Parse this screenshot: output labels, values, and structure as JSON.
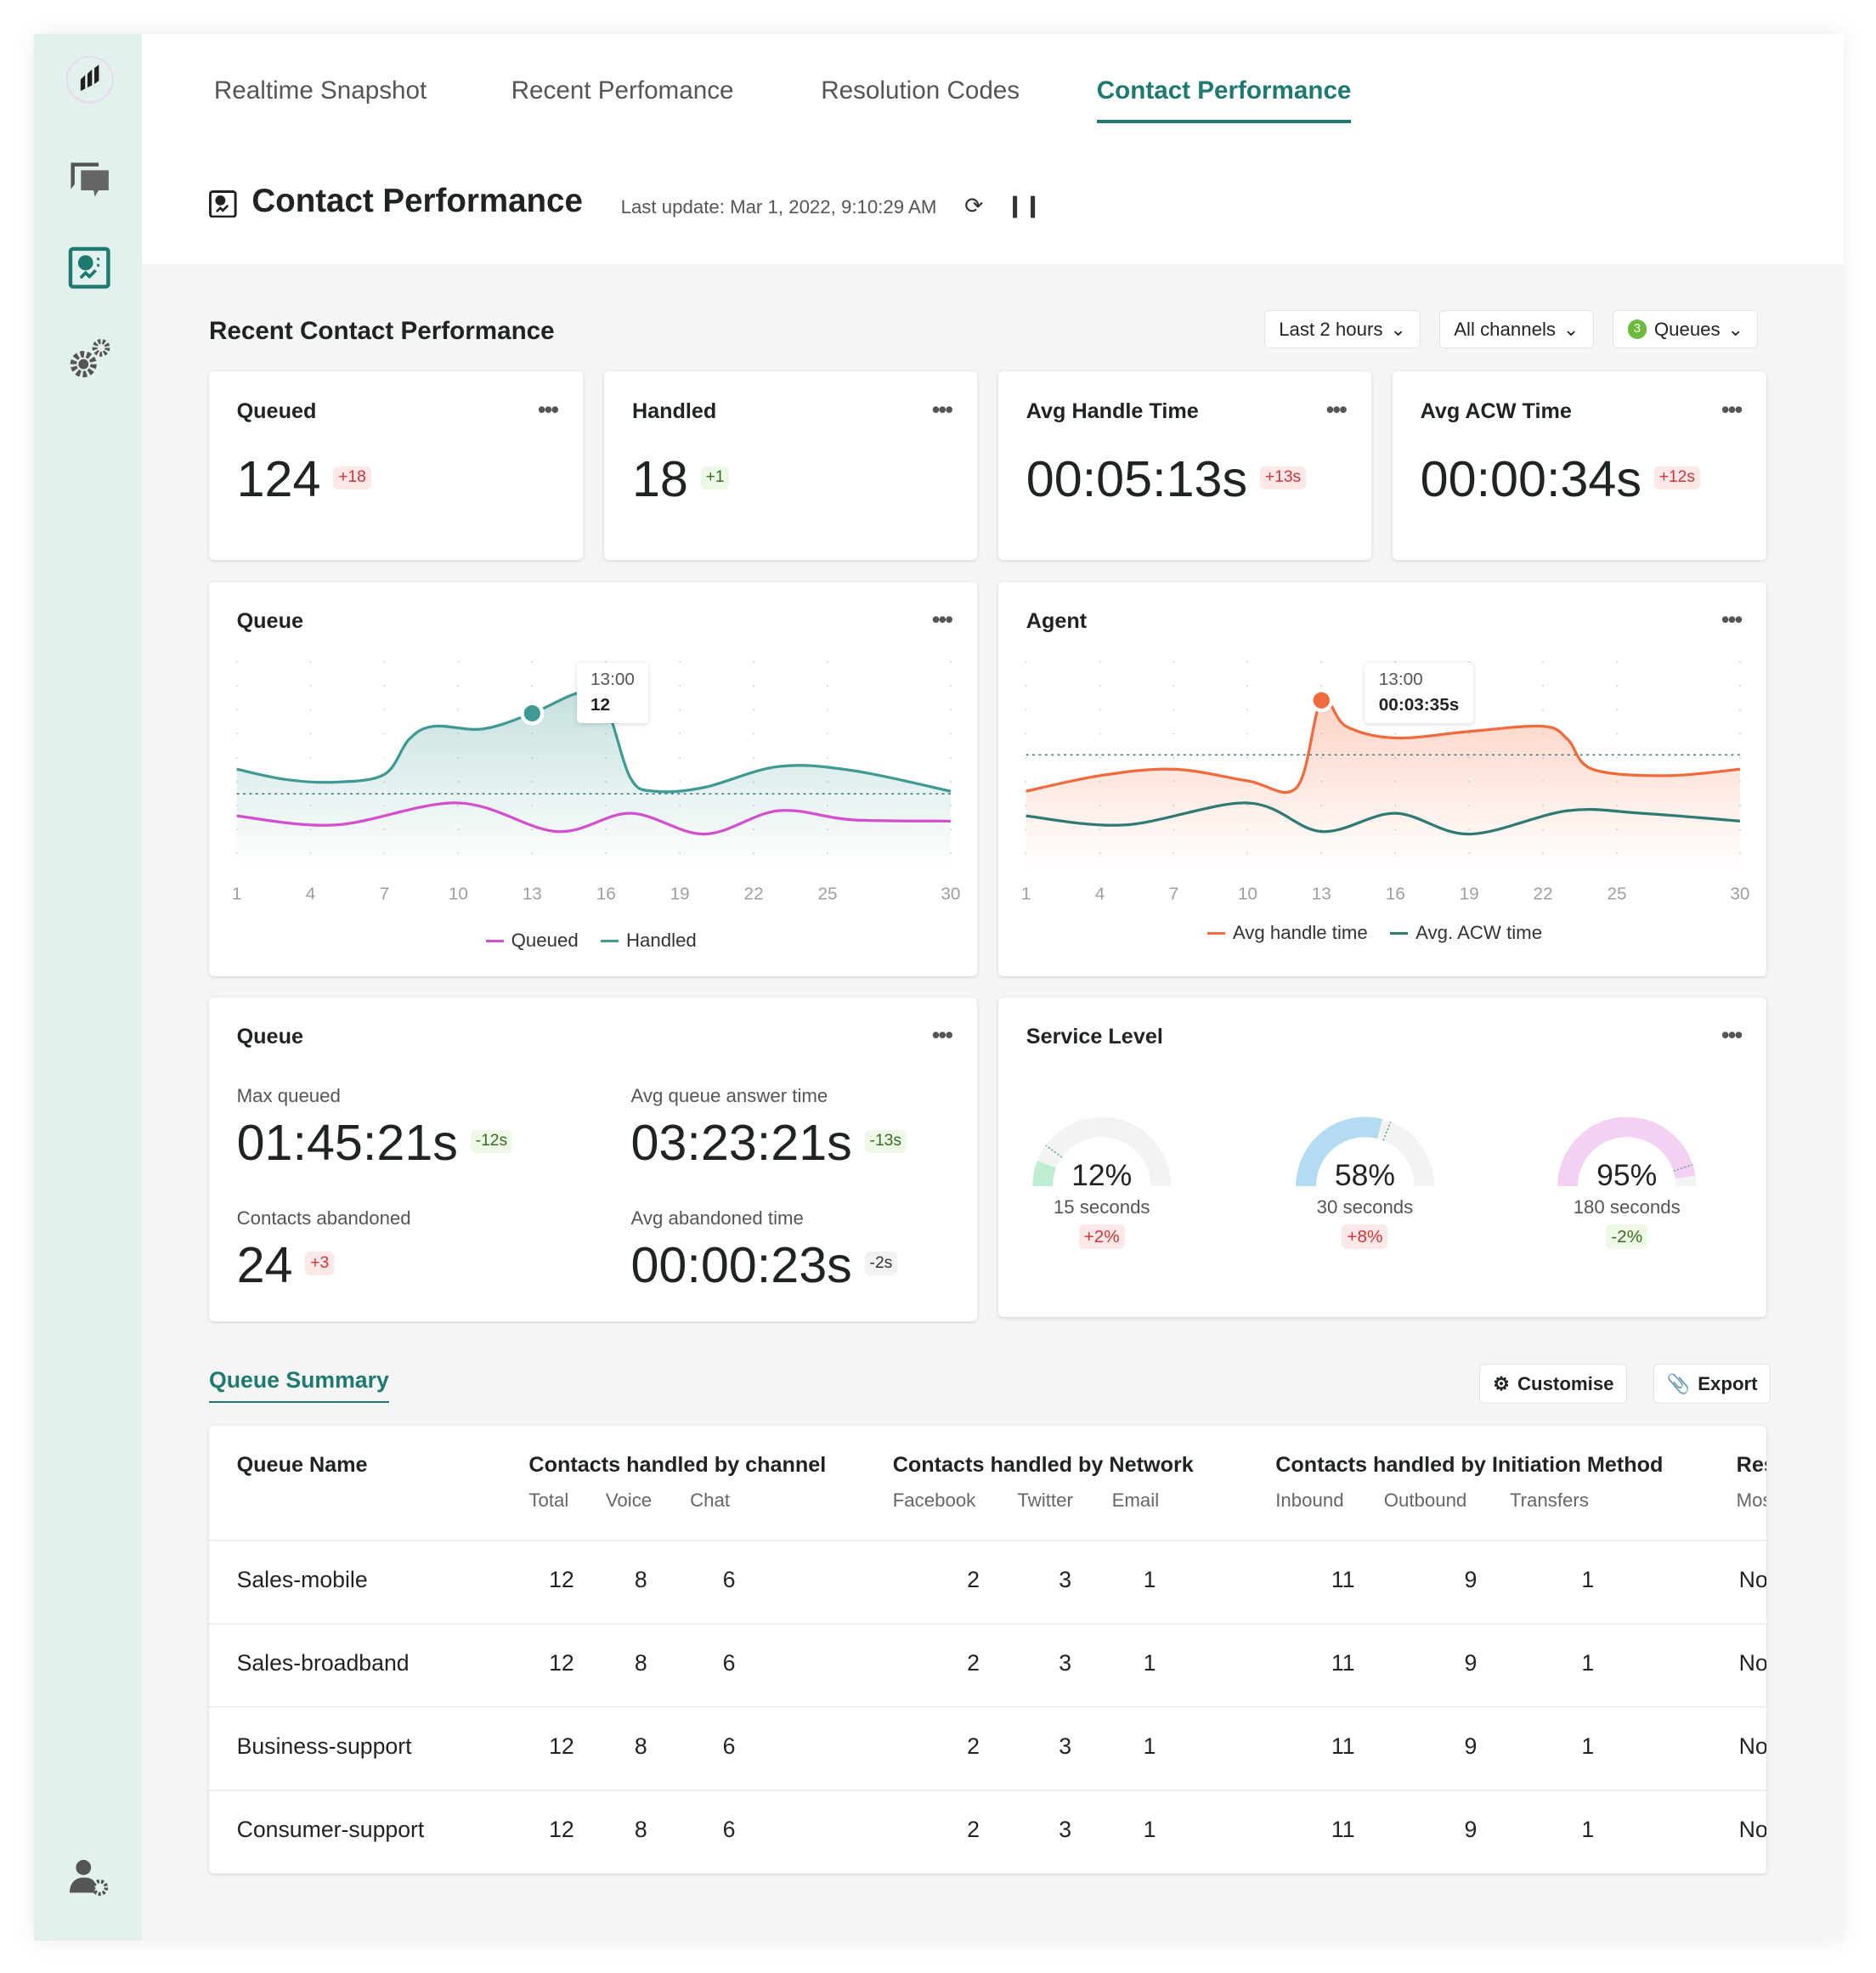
{
  "tabs": [
    {
      "label": "Realtime Snapshot",
      "active": false
    },
    {
      "label": "Recent Perfomance",
      "active": false
    },
    {
      "label": "Resolution Codes",
      "active": false
    },
    {
      "label": "Contact Performance",
      "active": true
    }
  ],
  "header": {
    "title": "Contact Performance",
    "last_update": "Last update: Mar 1, 2022, 9:10:29 AM"
  },
  "section": {
    "title": "Recent Contact Performance"
  },
  "filters": {
    "time": "Last 2 hours",
    "channels": "All channels",
    "queues_count": "3",
    "queues": "Queues"
  },
  "kpis": [
    {
      "title": "Queued",
      "value": "124",
      "delta": "+18",
      "status": "bad"
    },
    {
      "title": "Handled",
      "value": "18",
      "delta": "+1",
      "status": "good"
    },
    {
      "title": "Avg Handle Time",
      "value": "00:05:13s",
      "delta": "+13s",
      "status": "bad"
    },
    {
      "title": "Avg ACW Time",
      "value": "00:00:34s",
      "delta": "+12s",
      "status": "bad"
    }
  ],
  "queue_chart": {
    "title": "Queue",
    "tooltip_time": "13:00",
    "tooltip_value": "12",
    "legend": [
      "Queued",
      "Handled"
    ]
  },
  "agent_chart": {
    "title": "Agent",
    "tooltip_time": "13:00",
    "tooltip_value": "00:03:35s",
    "legend": [
      "Avg handle time",
      "Avg. ACW time"
    ]
  },
  "chart_data": [
    {
      "type": "area",
      "title": "Queue",
      "x_ticks": [
        "1",
        "4",
        "7",
        "10",
        "13",
        "16",
        "19",
        "22",
        "25",
        "30"
      ],
      "ylim": [
        0,
        16
      ],
      "series": [
        {
          "name": "Handled",
          "color": "#3f9a93",
          "x": [
            1,
            3,
            5,
            7,
            8,
            9,
            11,
            13,
            15,
            16,
            17,
            18,
            20,
            23,
            26,
            30
          ],
          "values": [
            7.7,
            6.9,
            6.7,
            7.3,
            10,
            11,
            10.8,
            12,
            13.6,
            12.5,
            7,
            6,
            6.3,
            7.9,
            7.6,
            6
          ]
        },
        {
          "name": "Queued",
          "color": "#d24fd0",
          "x": [
            1,
            5,
            10,
            14,
            17,
            20,
            23,
            26,
            30
          ],
          "values": [
            4.1,
            3.4,
            5.1,
            2.9,
            4.3,
            2.7,
            4.5,
            3.8,
            3.7
          ]
        }
      ],
      "average": 5.8
    },
    {
      "type": "area",
      "title": "Agent",
      "x_ticks": [
        "1",
        "4",
        "7",
        "10",
        "13",
        "16",
        "19",
        "22",
        "25",
        "30"
      ],
      "ylim": [
        0,
        16
      ],
      "series": [
        {
          "name": "Avg handle time",
          "color": "#f26a3b",
          "x": [
            1,
            4,
            7,
            10,
            12,
            13,
            14,
            16,
            19,
            22,
            23,
            24,
            27,
            30
          ],
          "values": [
            6,
            7.2,
            7.7,
            6.8,
            6.3,
            13,
            11,
            10.1,
            10.6,
            11,
            10,
            7.7,
            7.2,
            7.7
          ]
        },
        {
          "name": "Avg. ACW time",
          "color": "#2f7a72",
          "x": [
            1,
            5,
            10,
            13,
            16,
            19,
            23,
            26,
            30
          ],
          "values": [
            4.1,
            3.4,
            5.1,
            2.9,
            4.3,
            2.7,
            4.5,
            4.3,
            3.7
          ]
        }
      ],
      "average": 8.8
    }
  ],
  "queue_stats": {
    "title": "Queue",
    "items": [
      {
        "label": "Max queued",
        "value": "01:45:21s",
        "delta": "-12s",
        "status": "good"
      },
      {
        "label": "Avg queue answer time",
        "value": "03:23:21s",
        "delta": "-13s",
        "status": "good"
      },
      {
        "label": "Contacts abandoned",
        "value": "24",
        "delta": "+3",
        "status": "bad"
      },
      {
        "label": "Avg abandoned time",
        "value": "00:00:23s",
        "delta": "-2s",
        "status": "neutral"
      }
    ]
  },
  "service_level": {
    "title": "Service Level",
    "gauges": [
      {
        "percent": 12,
        "label": "12%",
        "threshold": "15 seconds",
        "delta": "+2%",
        "status": "bad",
        "color": "#bdeed2",
        "marker": 20
      },
      {
        "percent": 58,
        "label": "58%",
        "threshold": "30 seconds",
        "delta": "+8%",
        "status": "bad",
        "color": "#b3dcf3",
        "marker": 62
      },
      {
        "percent": 95,
        "label": "95%",
        "threshold": "180 seconds",
        "delta": "-2%",
        "status": "good",
        "color": "#f4d0f2",
        "marker": 90
      }
    ]
  },
  "queue_summary": {
    "title": "Queue Summary",
    "customise": "Customise",
    "export": "Export"
  },
  "table": {
    "groups": [
      "Queue Name",
      "Contacts handled by channel",
      "Contacts handled by Network",
      "Contacts handled by Initiation Method",
      "Res"
    ],
    "subheaders": [
      "Total",
      "Voice",
      "Chat",
      "Facebook",
      "Twitter",
      "Email",
      "Inbound",
      "Outbound",
      "Transfers",
      "Mos"
    ],
    "rows": [
      {
        "name": "Sales-mobile",
        "cells": [
          "12",
          "8",
          "6",
          "2",
          "3",
          "1",
          "11",
          "9",
          "1"
        ],
        "res": "No"
      },
      {
        "name": "Sales-broadband",
        "cells": [
          "12",
          "8",
          "6",
          "2",
          "3",
          "1",
          "11",
          "9",
          "1"
        ],
        "res": "No"
      },
      {
        "name": "Business-support",
        "cells": [
          "12",
          "8",
          "6",
          "2",
          "3",
          "1",
          "11",
          "9",
          "1"
        ],
        "res": "No"
      },
      {
        "name": "Consumer-support",
        "cells": [
          "12",
          "8",
          "6",
          "2",
          "3",
          "1",
          "11",
          "9",
          "1"
        ],
        "res": "No"
      }
    ]
  }
}
